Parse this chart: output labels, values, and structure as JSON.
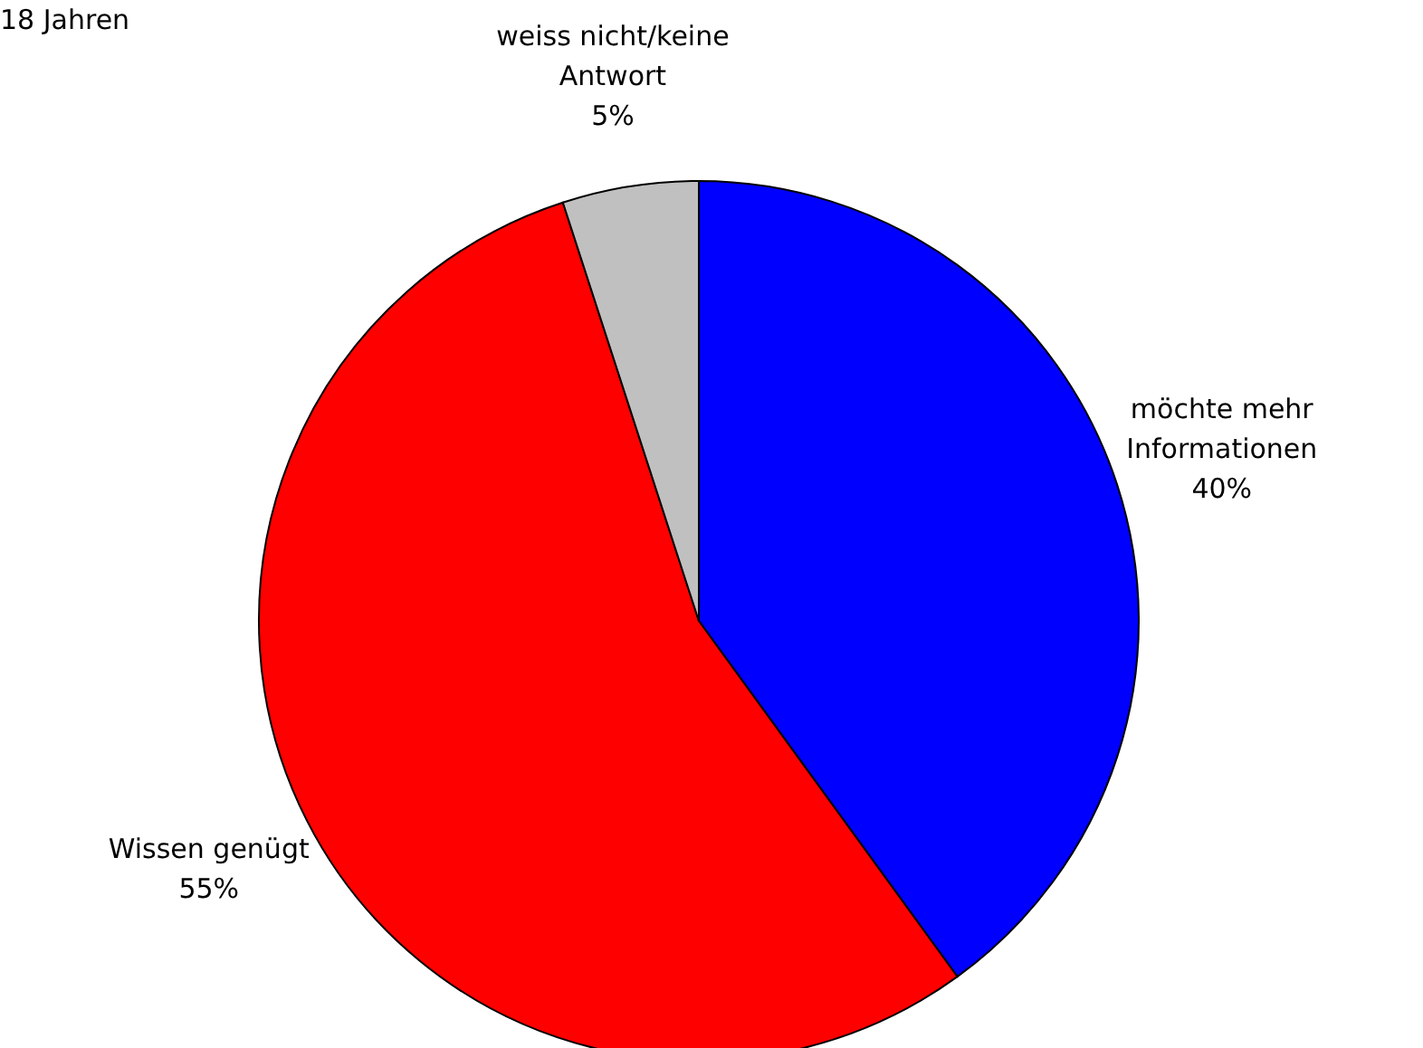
{
  "chart_data": {
    "type": "pie",
    "title": "18 Jahren",
    "categories": [
      "möchte mehr Informationen",
      "Wissen genügt",
      "weiss nicht/keine Antwort"
    ],
    "values": [
      40,
      55,
      5
    ],
    "colors": [
      "#0000ff",
      "#ff0000",
      "#c0c0c0"
    ],
    "value_labels": [
      "40%",
      "55%",
      "5%"
    ],
    "legend": false
  }
}
